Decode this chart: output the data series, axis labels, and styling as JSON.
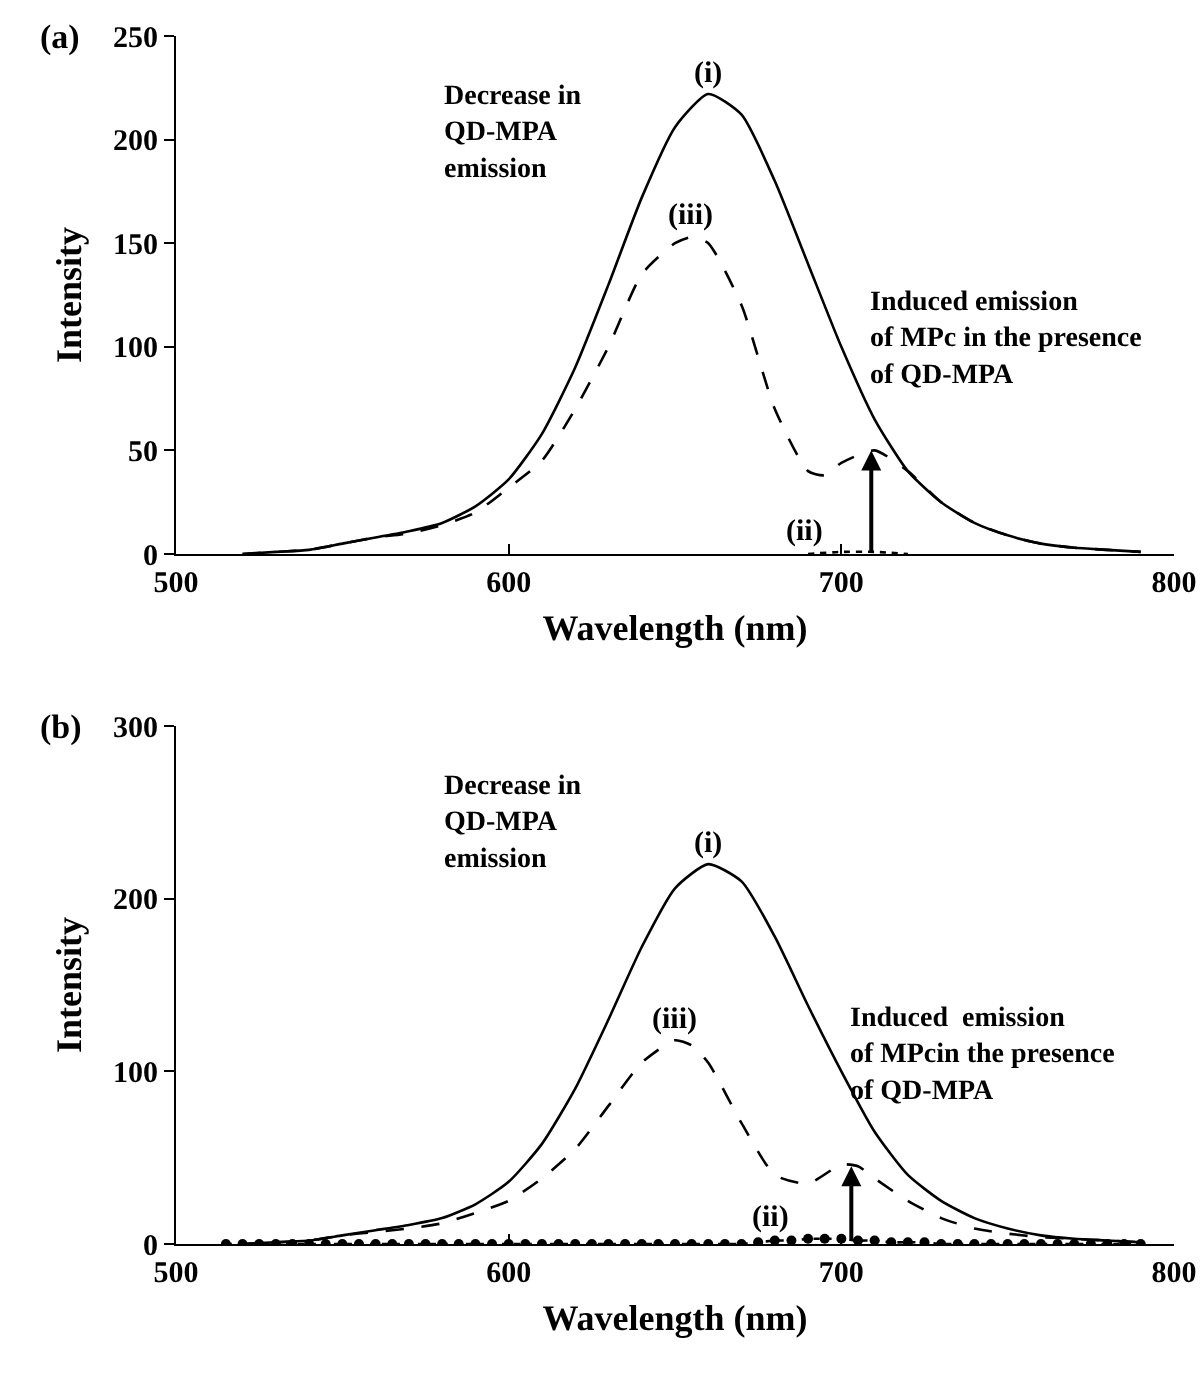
{
  "chart_data": [
    {
      "type": "line",
      "xlabel": "Wavelength (nm)",
      "ylabel": "Intensity",
      "xlim": [
        500,
        800
      ],
      "xticks": [
        500,
        600,
        700,
        800
      ],
      "ylim": [
        0,
        250
      ],
      "yticks": [
        0,
        50,
        100,
        150,
        200,
        250
      ],
      "grid": false,
      "legend": false,
      "annotations": [
        "(a)",
        "Decrease in\nQD-MPA\nemission",
        {
          "text": "Induced emission\nof MPc in the presence\nof QD-MPA",
          "x": 709,
          "y": 50
        }
      ],
      "series": [
        {
          "name": "(i)",
          "color": "#000000",
          "line_style": "solid",
          "marker": "none",
          "x": [
            520,
            530,
            540,
            550,
            560,
            570,
            580,
            590,
            600,
            610,
            620,
            630,
            640,
            650,
            660,
            670,
            680,
            690,
            700,
            710,
            720,
            730,
            740,
            750,
            760,
            770,
            780,
            790
          ],
          "values": [
            0,
            1,
            2,
            5,
            8,
            11,
            15,
            23,
            36,
            58,
            90,
            130,
            172,
            206,
            222,
            212,
            180,
            140,
            100,
            65,
            40,
            25,
            15,
            9,
            5,
            3,
            2,
            1
          ]
        },
        {
          "name": "(ii)",
          "color": "#000000",
          "line_style": "dotted",
          "marker": "none",
          "x": [
            690,
            700,
            710,
            720
          ],
          "values": [
            0,
            1,
            1,
            0
          ]
        },
        {
          "name": "(iii)",
          "color": "#000000",
          "line_style": "dashed",
          "marker": "none",
          "x": [
            520,
            530,
            540,
            550,
            560,
            570,
            580,
            590,
            600,
            610,
            620,
            630,
            640,
            650,
            655,
            660,
            670,
            680,
            690,
            695,
            700,
            710,
            720,
            730,
            740,
            750,
            760,
            770,
            780,
            790
          ],
          "values": [
            0,
            1,
            2,
            5,
            8,
            10,
            14,
            20,
            32,
            45,
            70,
            100,
            135,
            150,
            153,
            150,
            120,
            70,
            40,
            38,
            44,
            50,
            40,
            25,
            15,
            9,
            5,
            3,
            2,
            1
          ]
        }
      ]
    },
    {
      "type": "line",
      "xlabel": "Wavelength (nm)",
      "ylabel": "Intensity",
      "xlim": [
        500,
        800
      ],
      "xticks": [
        500,
        600,
        700,
        800
      ],
      "ylim": [
        0,
        300
      ],
      "yticks": [
        0,
        100,
        200,
        300
      ],
      "grid": false,
      "legend": false,
      "annotations": [
        "(b)",
        "Decrease in\nQD-MPA\nemission",
        {
          "text": "Induced  emission\nof MPcin the presence\nof QD-MPA",
          "x": 703,
          "y": 45
        }
      ],
      "series": [
        {
          "name": "(i)",
          "color": "#000000",
          "line_style": "solid",
          "marker": "none",
          "x": [
            520,
            530,
            540,
            550,
            560,
            570,
            580,
            590,
            600,
            610,
            620,
            630,
            640,
            650,
            660,
            670,
            680,
            690,
            700,
            710,
            720,
            730,
            740,
            750,
            760,
            770,
            780,
            790
          ],
          "values": [
            0,
            1,
            2,
            5,
            8,
            11,
            15,
            23,
            36,
            58,
            90,
            130,
            172,
            206,
            220,
            210,
            178,
            138,
            100,
            65,
            40,
            25,
            15,
            9,
            5,
            3,
            2,
            1
          ]
        },
        {
          "name": "(ii)",
          "color": "#000000",
          "line_style": "dotted",
          "marker": "circle",
          "x": [
            515,
            520,
            525,
            530,
            535,
            540,
            545,
            550,
            555,
            560,
            565,
            570,
            575,
            580,
            585,
            590,
            595,
            600,
            605,
            610,
            615,
            620,
            625,
            630,
            635,
            640,
            645,
            650,
            655,
            660,
            665,
            670,
            675,
            680,
            685,
            690,
            695,
            700,
            705,
            710,
            715,
            720,
            725,
            730,
            735,
            740,
            745,
            750,
            755,
            760,
            765,
            770,
            775,
            780,
            785,
            790
          ],
          "values": [
            0,
            0,
            0,
            0,
            0,
            0,
            0,
            0,
            0,
            0,
            0,
            0,
            0,
            0,
            0,
            0,
            0,
            0,
            0,
            0,
            0,
            0,
            0,
            0,
            0,
            0,
            0,
            0,
            0,
            0,
            0,
            0,
            1,
            2,
            2,
            3,
            3,
            3,
            2,
            2,
            1,
            1,
            1,
            0,
            0,
            0,
            0,
            0,
            0,
            0,
            0,
            0,
            0,
            0,
            0,
            0
          ]
        },
        {
          "name": "(iii)",
          "color": "#000000",
          "line_style": "dashed",
          "marker": "none",
          "x": [
            520,
            530,
            540,
            550,
            560,
            570,
            580,
            590,
            600,
            610,
            620,
            630,
            640,
            650,
            655,
            660,
            670,
            680,
            690,
            700,
            705,
            710,
            720,
            730,
            740,
            750,
            760,
            770,
            780,
            790
          ],
          "values": [
            0,
            1,
            2,
            5,
            7,
            9,
            12,
            18,
            25,
            38,
            55,
            80,
            105,
            118,
            115,
            105,
            70,
            40,
            35,
            46,
            45,
            38,
            25,
            15,
            9,
            6,
            4,
            3,
            2,
            1
          ]
        }
      ]
    }
  ]
}
